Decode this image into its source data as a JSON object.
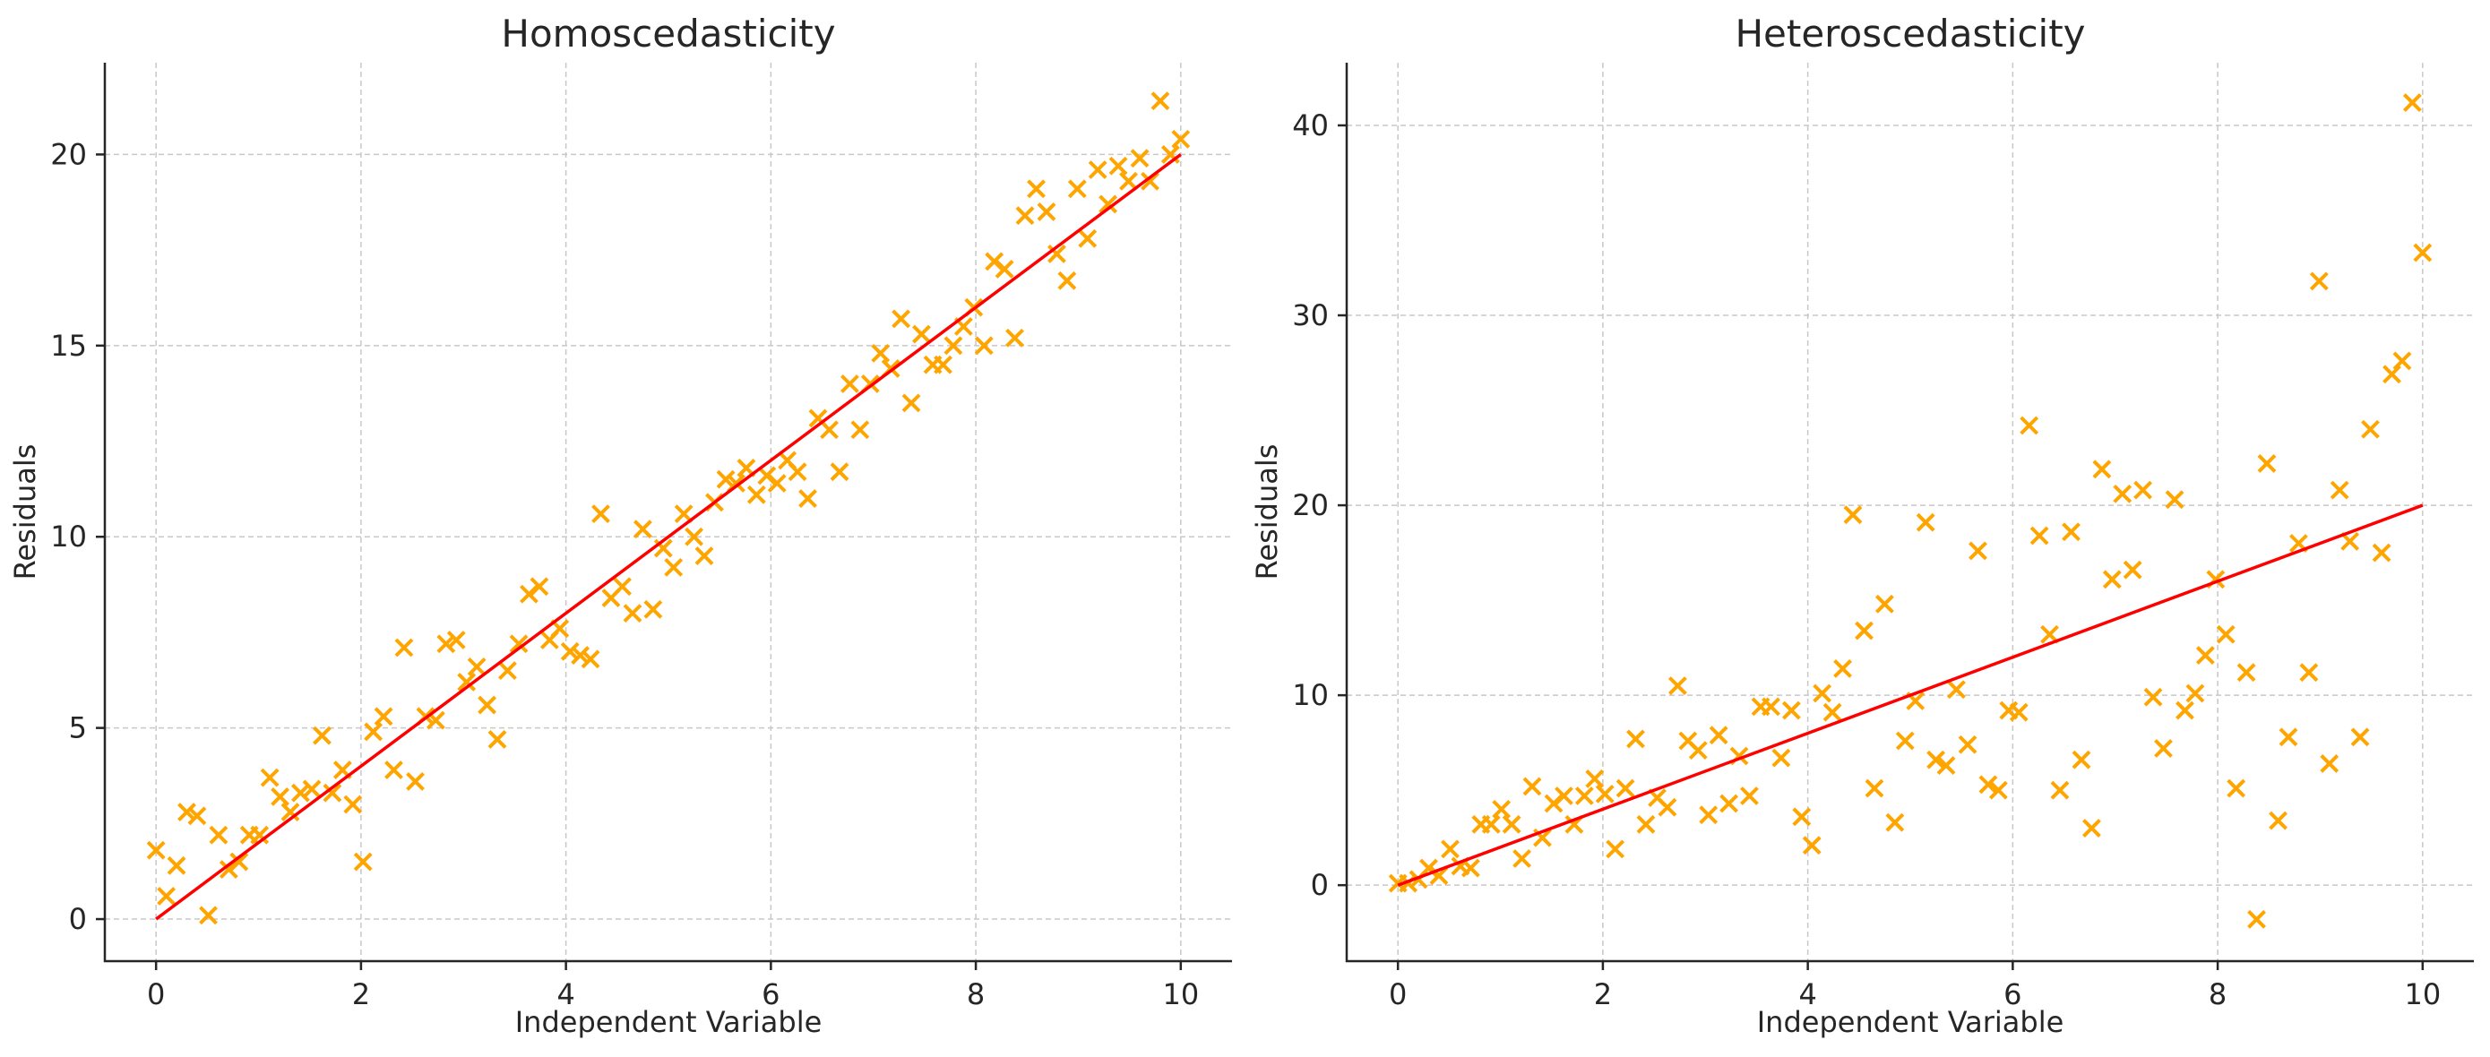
{
  "colors": {
    "scatter": "#ffa500",
    "fit_line": "#ff0000"
  },
  "chart_data": [
    {
      "type": "scatter",
      "title": "Homoscedasticity",
      "xlabel": "Independent Variable",
      "ylabel": "Residuals",
      "xlim": [
        -0.5,
        10.5
      ],
      "ylim": [
        -1.1,
        22.4
      ],
      "xticks": [
        0,
        2,
        4,
        6,
        8,
        10
      ],
      "yticks": [
        0,
        5,
        10,
        15,
        20
      ],
      "grid": true,
      "marker": "x",
      "fit_line": {
        "x": [
          0,
          10
        ],
        "y": [
          0,
          20
        ]
      },
      "x": [
        0,
        0.1,
        0.2,
        0.3,
        0.4,
        0.51,
        0.61,
        0.71,
        0.81,
        0.91,
        1.01,
        1.11,
        1.21,
        1.31,
        1.41,
        1.52,
        1.62,
        1.72,
        1.82,
        1.92,
        2.02,
        2.12,
        2.22,
        2.32,
        2.42,
        2.53,
        2.63,
        2.73,
        2.83,
        2.93,
        3.03,
        3.13,
        3.23,
        3.33,
        3.43,
        3.54,
        3.64,
        3.74,
        3.84,
        3.94,
        4.04,
        4.14,
        4.24,
        4.34,
        4.44,
        4.55,
        4.65,
        4.75,
        4.85,
        4.95,
        5.05,
        5.15,
        5.25,
        5.35,
        5.45,
        5.56,
        5.66,
        5.76,
        5.86,
        5.96,
        6.06,
        6.16,
        6.26,
        6.36,
        6.46,
        6.57,
        6.67,
        6.77,
        6.87,
        6.97,
        7.07,
        7.17,
        7.27,
        7.37,
        7.47,
        7.58,
        7.68,
        7.78,
        7.88,
        7.98,
        8.08,
        8.18,
        8.28,
        8.38,
        8.48,
        8.59,
        8.69,
        8.79,
        8.89,
        8.99,
        9.09,
        9.19,
        9.29,
        9.39,
        9.49,
        9.6,
        9.7,
        9.8,
        9.9,
        10
      ],
      "y": [
        1.8,
        0.6,
        1.4,
        2.8,
        2.7,
        0.1,
        2.2,
        1.3,
        1.5,
        2.2,
        2.2,
        3.7,
        3.2,
        2.8,
        3.3,
        3.4,
        4.8,
        3.3,
        3.9,
        3.0,
        1.5,
        4.9,
        5.3,
        3.9,
        7.1,
        3.6,
        5.3,
        5.2,
        7.2,
        7.3,
        6.2,
        6.6,
        5.6,
        4.7,
        6.5,
        7.2,
        8.5,
        8.7,
        7.3,
        7.6,
        7.0,
        6.9,
        6.8,
        10.6,
        8.4,
        8.7,
        8.0,
        10.2,
        8.1,
        9.7,
        9.2,
        10.6,
        10.0,
        9.5,
        10.9,
        11.5,
        11.4,
        11.8,
        11.1,
        11.6,
        11.4,
        12.0,
        11.7,
        11.0,
        13.1,
        12.8,
        11.7,
        14.0,
        12.8,
        14.0,
        14.8,
        14.4,
        15.7,
        13.5,
        15.3,
        14.5,
        14.5,
        15.0,
        15.5,
        16.0,
        15.0,
        17.2,
        17.0,
        15.2,
        18.4,
        19.1,
        18.5,
        17.4,
        16.7,
        19.1,
        17.8,
        19.6,
        18.7,
        19.7,
        19.3,
        19.9,
        19.3,
        21.4,
        20.0,
        20.4
      ]
    },
    {
      "type": "scatter",
      "title": "Heteroscedasticity",
      "xlabel": "Independent Variable",
      "ylabel": "Residuals",
      "xlim": [
        -0.5,
        10.5
      ],
      "ylim": [
        -4,
        43.3
      ],
      "xticks": [
        0,
        2,
        4,
        6,
        8,
        10
      ],
      "yticks": [
        0,
        10,
        20,
        30,
        40
      ],
      "grid": true,
      "marker": "x",
      "fit_line": {
        "x": [
          0,
          10
        ],
        "y": [
          0,
          20
        ]
      },
      "x": [
        0,
        0.1,
        0.2,
        0.3,
        0.4,
        0.51,
        0.61,
        0.71,
        0.81,
        0.91,
        1.01,
        1.11,
        1.21,
        1.31,
        1.41,
        1.52,
        1.62,
        1.72,
        1.82,
        1.92,
        2.02,
        2.12,
        2.22,
        2.32,
        2.42,
        2.53,
        2.63,
        2.73,
        2.83,
        2.93,
        3.03,
        3.13,
        3.23,
        3.33,
        3.43,
        3.54,
        3.64,
        3.74,
        3.84,
        3.94,
        4.04,
        4.14,
        4.24,
        4.34,
        4.44,
        4.55,
        4.65,
        4.75,
        4.85,
        4.95,
        5.05,
        5.15,
        5.25,
        5.35,
        5.45,
        5.56,
        5.66,
        5.76,
        5.86,
        5.96,
        6.06,
        6.16,
        6.26,
        6.36,
        6.46,
        6.57,
        6.67,
        6.77,
        6.87,
        6.97,
        7.07,
        7.17,
        7.27,
        7.37,
        7.47,
        7.58,
        7.68,
        7.78,
        7.88,
        7.98,
        8.08,
        8.18,
        8.28,
        8.38,
        8.48,
        8.59,
        8.69,
        8.79,
        8.89,
        8.99,
        9.09,
        9.19,
        9.29,
        9.39,
        9.49,
        9.6,
        9.7,
        9.8,
        9.9,
        10
      ],
      "y": [
        0.1,
        0.1,
        0.3,
        0.9,
        0.5,
        1.9,
        1.0,
        0.9,
        3.2,
        3.2,
        4.0,
        3.2,
        1.4,
        5.2,
        2.5,
        4.3,
        4.7,
        3.2,
        4.7,
        5.6,
        4.8,
        1.9,
        5.1,
        7.7,
        3.2,
        4.6,
        4.1,
        10.5,
        7.6,
        7.1,
        3.7,
        7.9,
        4.3,
        6.8,
        4.7,
        9.4,
        9.4,
        6.7,
        9.2,
        3.6,
        2.1,
        10.1,
        9.1,
        11.4,
        19.5,
        13.4,
        5.1,
        14.8,
        3.3,
        7.6,
        9.7,
        19.1,
        6.6,
        6.3,
        10.3,
        7.4,
        17.6,
        5.3,
        5.0,
        9.2,
        9.1,
        24.2,
        18.4,
        13.2,
        5.0,
        18.6,
        6.6,
        3.0,
        21.9,
        16.1,
        20.6,
        16.6,
        20.8,
        9.9,
        7.2,
        20.3,
        9.2,
        10.1,
        12.1,
        16.1,
        13.2,
        5.1,
        11.2,
        -1.8,
        22.2,
        3.4,
        7.8,
        18.0,
        11.2,
        31.8,
        6.4,
        20.8,
        18.1,
        7.8,
        24.0,
        17.5,
        26.9,
        27.6,
        41.2,
        33.3
      ]
    }
  ]
}
